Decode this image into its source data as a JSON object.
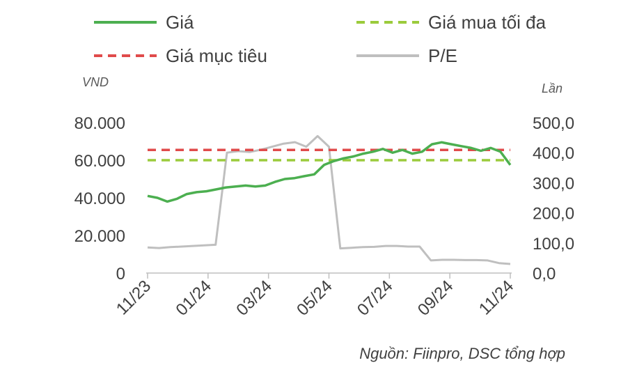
{
  "chart_data": {
    "type": "line",
    "legend": {
      "placement": "top",
      "entries": [
        {
          "key": "price",
          "label": "Giá",
          "color": "#4CAF50",
          "style": "solid"
        },
        {
          "key": "max_buy",
          "label": "Giá mua tối đa",
          "color": "#9BCB3C",
          "style": "dashed"
        },
        {
          "key": "target",
          "label": "Giá mục tiêu",
          "color": "#E04B4B",
          "style": "dashed"
        },
        {
          "key": "pe",
          "label": "P/E",
          "color": "#BFBFBF",
          "style": "solid"
        }
      ]
    },
    "y_left": {
      "unit": "VND",
      "min": 0,
      "max": 80000,
      "ticks": [
        "0",
        "20.000",
        "40.000",
        "60.000",
        "80.000"
      ]
    },
    "y_right": {
      "unit": "Lần",
      "min": 0,
      "max": 500,
      "ticks": [
        "0,0",
        "100,0",
        "200,0",
        "300,0",
        "400,0",
        "500,0"
      ]
    },
    "x": {
      "labels": [
        "11/23",
        "01/24",
        "03/24",
        "05/24",
        "07/24",
        "09/24",
        "11/24"
      ]
    },
    "series": [
      {
        "name": "Giá",
        "axis": "left",
        "x": [
          "11/23",
          "11/23",
          "11/23",
          "12/23",
          "12/23",
          "12/23",
          "01/24",
          "01/24",
          "01/24",
          "02/24",
          "02/24",
          "02/24",
          "03/24",
          "03/24",
          "03/24",
          "04/24",
          "04/24",
          "04/24",
          "05/24",
          "05/24",
          "05/24",
          "06/24",
          "06/24",
          "06/24",
          "07/24",
          "07/24",
          "07/24",
          "08/24",
          "08/24",
          "08/24",
          "09/24",
          "09/24",
          "09/24",
          "10/24",
          "10/24",
          "10/24",
          "11/24",
          "11/24"
        ],
        "values": [
          41000,
          40000,
          38000,
          39500,
          42000,
          43000,
          43500,
          44500,
          45500,
          46000,
          46500,
          46000,
          46500,
          48500,
          50000,
          50500,
          51500,
          52500,
          57500,
          59500,
          61000,
          62000,
          63500,
          64500,
          66000,
          64000,
          65500,
          63500,
          64500,
          68500,
          69500,
          68500,
          67500,
          66500,
          65000,
          66500,
          64500,
          57500
        ]
      },
      {
        "name": "Giá mua tối đa",
        "axis": "left",
        "values": [
          60000,
          60000
        ]
      },
      {
        "name": "Giá mục tiêu",
        "axis": "left",
        "values": [
          65500,
          65500
        ]
      },
      {
        "name": "P/E",
        "axis": "right",
        "x": [
          "11/23",
          "11/23",
          "12/23",
          "12/23",
          "01/24",
          "01/24",
          "02/24",
          "02/24",
          "02/24",
          "02/24",
          "03/24",
          "03/24",
          "03/24",
          "04/24",
          "04/24",
          "04/24",
          "04/24",
          "04/24",
          "05/24",
          "05/24",
          "06/24",
          "06/24",
          "07/24",
          "07/24",
          "08/24",
          "08/24",
          "08/24",
          "09/24",
          "09/24",
          "10/24",
          "10/24",
          "11/24",
          "11/24"
        ],
        "values": [
          85,
          83,
          86,
          88,
          90,
          92,
          94,
          400,
          405,
          402,
          410,
          420,
          430,
          435,
          420,
          455,
          420,
          82,
          84,
          86,
          87,
          90,
          90,
          88,
          88,
          42,
          44,
          44,
          43,
          43,
          42,
          33,
          30
        ]
      }
    ],
    "source": "Nguồn: Fiinpro, DSC tổng hợp"
  }
}
